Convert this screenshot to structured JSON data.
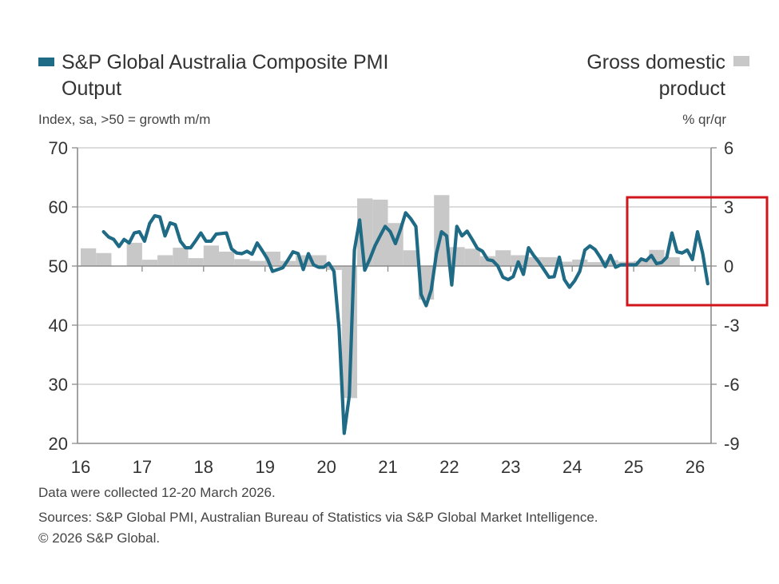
{
  "legend": {
    "line_label_1": "S&P Global Australia Composite PMI",
    "line_label_2": "Output",
    "bar_label_1": "Gross domestic",
    "bar_label_2": "product"
  },
  "axis_units": {
    "left": "Index, sa, >50 = growth m/m",
    "right": "% qr/qr"
  },
  "footnotes": {
    "collected": "Data were collected 12-20 March 2026.",
    "sources": "Sources: S&P Global PMI, Australian Bureau of Statistics via S&P Global Market Intelligence.",
    "copyright": "© 2026 S&P Global."
  },
  "colors": {
    "line": "#1f6a85",
    "bars": "#c8c8c8",
    "highlight_box": "#d0161b",
    "grid": "#c8c8c8",
    "axis": "#8c8c8c"
  },
  "chart_data": {
    "type": "line+bar",
    "x_tick_labels": [
      "16",
      "17",
      "18",
      "19",
      "20",
      "21",
      "22",
      "23",
      "24",
      "25",
      "26"
    ],
    "left_axis": {
      "ylim": [
        20,
        70
      ],
      "ticks": [
        "70",
        "60",
        "50",
        "40",
        "30",
        "20"
      ]
    },
    "right_axis": {
      "ylim": [
        -9,
        6
      ],
      "ticks": [
        "6",
        "3",
        "0",
        "-3",
        "-6",
        "-9"
      ]
    },
    "grid": true,
    "highlight": {
      "shape": "rectangle",
      "from": "2025-01",
      "to": "2026-03"
    },
    "series": [
      {
        "name": "S&P Global Australia Composite PMI Output",
        "type": "line",
        "axis": "left",
        "frequency": "monthly",
        "start": "2016-05",
        "values": [
          55.8,
          54.9,
          54.5,
          53.3,
          54.5,
          53.9,
          55.6,
          55.8,
          54.2,
          57.2,
          58.5,
          58.3,
          55.1,
          57.3,
          57.0,
          54.2,
          53.1,
          53.1,
          54.3,
          55.6,
          54.2,
          54.2,
          55.4,
          55.5,
          55.6,
          52.9,
          52.2,
          52.1,
          52.5,
          52.0,
          53.9,
          52.6,
          51.2,
          49.1,
          49.4,
          49.7,
          51.0,
          52.4,
          52.1,
          49.4,
          52.1,
          50.2,
          49.8,
          49.8,
          50.5,
          49.1,
          39.4,
          21.7,
          28.1,
          52.7,
          57.8,
          49.3,
          51.2,
          53.4,
          55.1,
          56.7,
          55.8,
          53.8,
          56.2,
          59.0,
          58.0,
          56.7,
          45.2,
          43.3,
          46.0,
          52.1,
          55.8,
          55.1,
          46.8,
          56.7,
          55.1,
          55.9,
          54.5,
          53.0,
          52.5,
          51.1,
          50.9,
          50.0,
          48.1,
          47.7,
          48.2,
          50.7,
          48.6,
          53.1,
          51.8,
          50.7,
          49.4,
          48.1,
          48.2,
          51.5,
          47.7,
          46.4,
          47.5,
          49.1,
          52.7,
          53.4,
          52.8,
          51.5,
          49.9,
          51.8,
          49.8,
          50.2,
          50.2,
          50.2,
          50.2,
          51.2,
          50.9,
          51.8,
          50.4,
          50.6,
          51.5,
          55.6,
          52.4,
          52.2,
          52.7,
          51.1,
          55.8,
          52.2,
          47.0
        ]
      },
      {
        "name": "Gross domestic product",
        "type": "bar",
        "axis": "right",
        "frequency": "quarterly",
        "start": "2016-Q1",
        "values": [
          0.9,
          0.66,
          0,
          1.18,
          0.32,
          0.55,
          0.93,
          0.4,
          1.04,
          0.73,
          0.35,
          0.26,
          0.73,
          0.26,
          0.55,
          0.55,
          -0.2,
          -6.7,
          3.43,
          3.37,
          2.18,
          0.8,
          -1.7,
          3.6,
          0.96,
          0.88,
          0.5,
          0.8,
          0.55,
          0.45,
          0.45,
          0.22,
          0.33,
          0.2,
          0.3,
          0.22,
          0.26,
          0.82,
          0.45
        ]
      }
    ]
  }
}
